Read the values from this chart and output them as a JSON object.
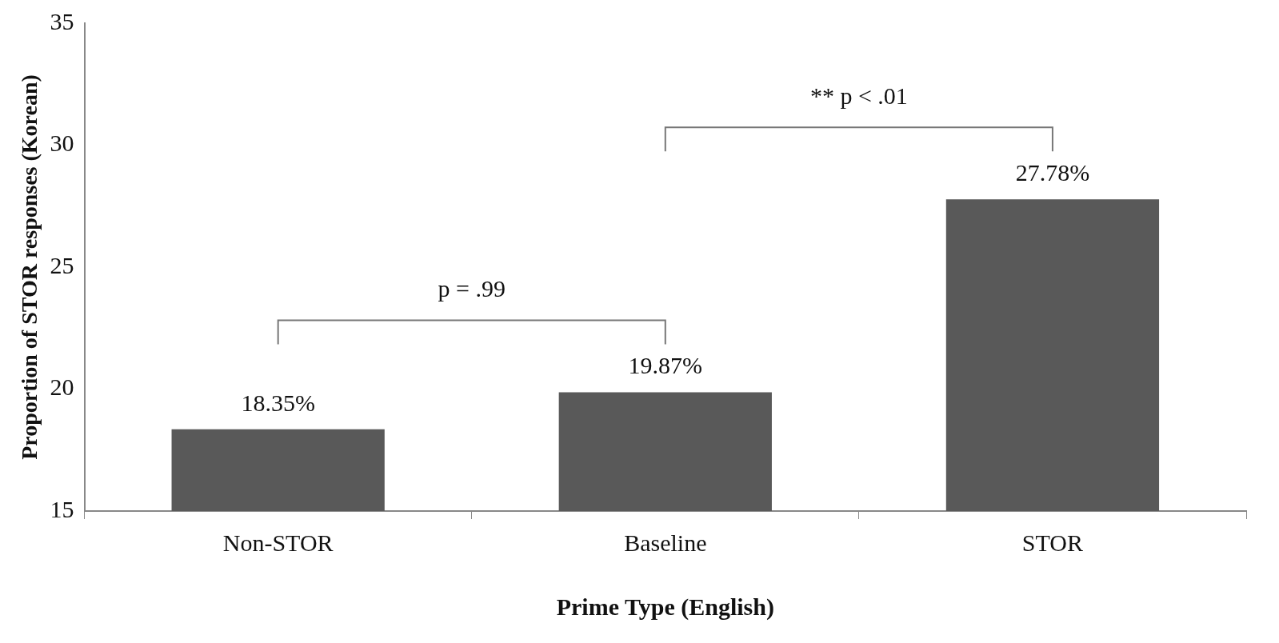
{
  "chart_data": {
    "type": "bar",
    "xlabel": "Prime Type (English)",
    "ylabel": "Proportion of STOR responses (Korean)",
    "categories": [
      "Non-STOR",
      "Baseline",
      "STOR"
    ],
    "values": [
      18.35,
      19.87,
      27.78
    ],
    "value_labels": [
      "18.35%",
      "19.87%",
      "27.78%"
    ],
    "color": "#595959",
    "ylim": [
      15,
      35
    ],
    "yticks": [
      15,
      20,
      25,
      30,
      35
    ],
    "grid": false,
    "legend": false,
    "annotations": [
      "p = .99",
      "** p < .01"
    ]
  }
}
